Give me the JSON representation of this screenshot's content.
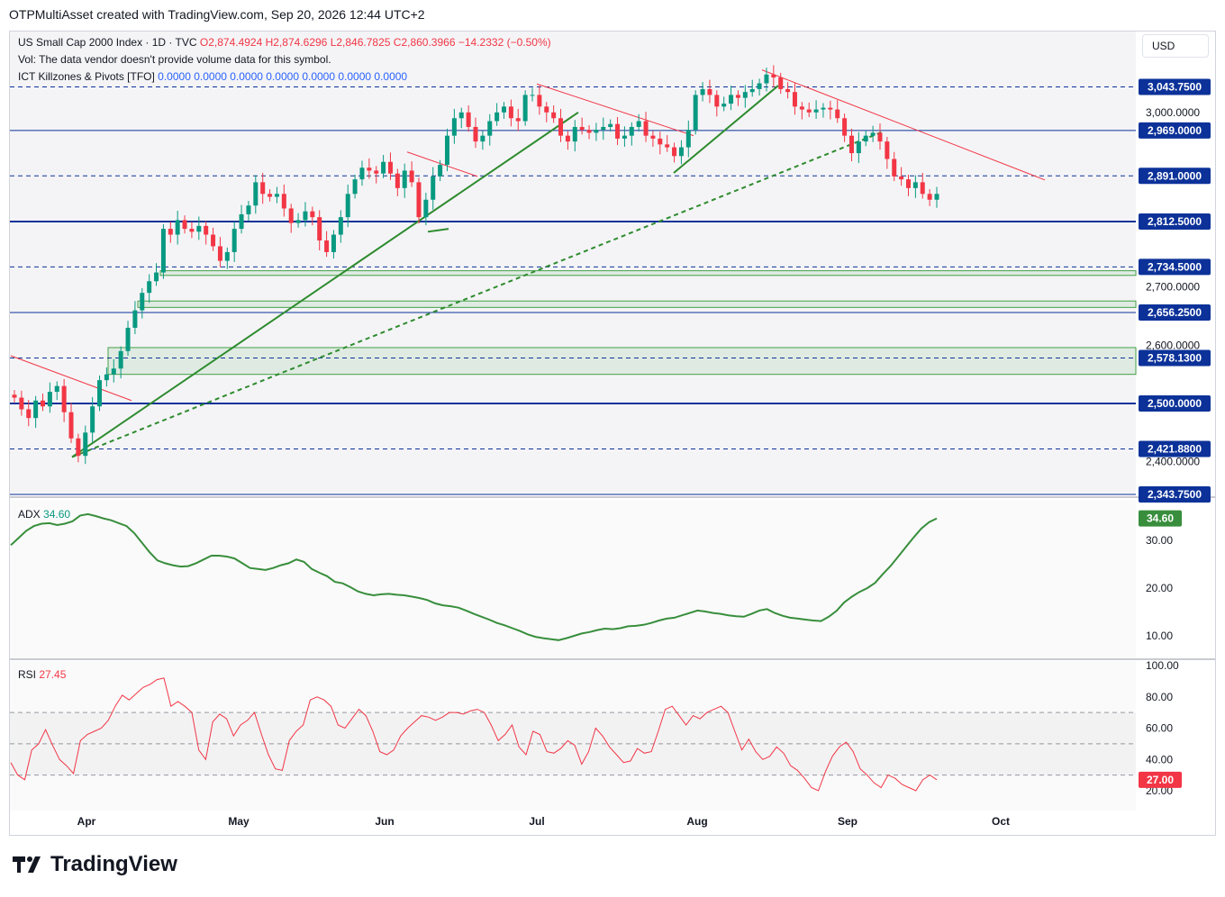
{
  "header": {
    "attribution": "OTPMultiAsset created with TradingView.com, Sep 20, 2026 12:44 UTC+2"
  },
  "legend": {
    "symbol": "US Small Cap 2000 Index · 1D · TVC",
    "o": "O2,874.4924",
    "h": "H2,874.6296",
    "l": "L2,846.7825",
    "c": "C2,860.3966",
    "change": "−14.2332 (−0.50%)",
    "vol_note": "Vol: The data vendor doesn't provide volume data for this symbol.",
    "indicator": "ICT Killzones & Pivots [TFO]",
    "indicator_values": "0.0000  0.0000  0.0000  0.0000  0.0000  0.0000  0.0000"
  },
  "currency": "USD",
  "adx_label": {
    "name": "ADX",
    "value": "34.60"
  },
  "rsi_label": {
    "name": "RSI",
    "value": "27.45"
  },
  "footer": {
    "brand": "TradingView"
  },
  "colors": {
    "up": "#089981",
    "down": "#f23645",
    "level": "#0c3299",
    "trend": "#2e8b2e",
    "rsi": "#f23645",
    "adx": "#388e3c"
  },
  "chart_data": [
    {
      "type": "candlestick",
      "title": "US Small Cap 2000 Index · 1D · TVC",
      "x_labels": [
        "Apr",
        "May",
        "Jun",
        "Jul",
        "Aug",
        "Sep",
        "Oct"
      ],
      "y_ticks": [
        2400,
        2500,
        2600,
        2700,
        2800,
        2900,
        3000
      ],
      "ylim": [
        2330,
        3085
      ],
      "price_levels": [
        {
          "label": "3,043.7500",
          "value": 3043.75,
          "style": "dashed"
        },
        {
          "label": "2,969.0000",
          "value": 2969.0,
          "style": "solid"
        },
        {
          "label": "2,891.0000",
          "value": 2891.0,
          "style": "dashed"
        },
        {
          "label": "2,812.5000",
          "value": 2812.5,
          "style": "solid-bold"
        },
        {
          "label": "2,734.5000",
          "value": 2734.5,
          "style": "dashed"
        },
        {
          "label": "2,656.2500",
          "value": 2656.25,
          "style": "solid"
        },
        {
          "label": "2,578.1300",
          "value": 2578.13,
          "style": "dashed"
        },
        {
          "label": "2,500.0000",
          "value": 2500.0,
          "style": "solid-bold"
        },
        {
          "label": "2,421.8800",
          "value": 2421.88,
          "style": "dashed"
        },
        {
          "label": "2,343.7500",
          "value": 2343.75,
          "style": "solid"
        }
      ],
      "right_axis_labels": [
        "3,000.0000",
        "2,700.0000",
        "2,600.0000",
        "2,500.0000",
        "2,400.0000"
      ],
      "candles_close": [
        2510,
        2490,
        2475,
        2505,
        2495,
        2520,
        2530,
        2485,
        2440,
        2410,
        2450,
        2495,
        2540,
        2550,
        2560,
        2590,
        2630,
        2660,
        2690,
        2710,
        2725,
        2800,
        2790,
        2815,
        2800,
        2795,
        2805,
        2790,
        2770,
        2745,
        2760,
        2800,
        2825,
        2840,
        2880,
        2860,
        2855,
        2860,
        2835,
        2810,
        2815,
        2830,
        2820,
        2780,
        2760,
        2790,
        2820,
        2860,
        2885,
        2905,
        2900,
        2895,
        2915,
        2895,
        2870,
        2900,
        2880,
        2820,
        2850,
        2890,
        2910,
        2960,
        2990,
        3000,
        2975,
        2950,
        2960,
        2985,
        3000,
        3010,
        2990,
        2985,
        3030,
        3030,
        3010,
        3000,
        2990,
        2960,
        2950,
        2975,
        2970,
        2965,
        2970,
        2975,
        2980,
        2955,
        2960,
        2975,
        2985,
        2960,
        2955,
        2945,
        2940,
        2925,
        2940,
        2970,
        3030,
        3040,
        3030,
        3010,
        3015,
        3030,
        3025,
        3035,
        3040,
        3050,
        3065,
        3060,
        3040,
        3035,
        3010,
        3005,
        3000,
        3005,
        3008,
        3005,
        2990,
        2960,
        2930,
        2950,
        2960,
        2965,
        2950,
        2920,
        2890,
        2885,
        2870,
        2880,
        2860,
        2850,
        2860
      ]
    },
    {
      "type": "line",
      "title": "ADX",
      "series": [
        {
          "name": "ADX",
          "values": [
            29,
            30.5,
            32,
            33,
            33.5,
            33.6,
            33.2,
            33.5,
            34,
            35.2,
            35.5,
            35.1,
            34.6,
            34.2,
            33.6,
            33,
            31.5,
            29.5,
            27.5,
            25.8,
            25.2,
            24.8,
            24.5,
            24.6,
            25.2,
            26,
            26.8,
            26.8,
            26.6,
            26.2,
            25.2,
            24.2,
            24,
            23.8,
            24.2,
            24.8,
            25.2,
            26,
            25.5,
            24,
            23.2,
            22.5,
            21.3,
            21,
            20.2,
            19.3,
            18.8,
            18.5,
            18.7,
            18.8,
            18.6,
            18.5,
            18.2,
            17.9,
            17.5,
            16.8,
            16.4,
            16.2,
            15.9,
            15.3,
            14.6,
            14,
            13.4,
            12.7,
            12.2,
            11.6,
            11,
            10.3,
            9.8,
            9.5,
            9.3,
            9.1,
            9.5,
            10,
            10.5,
            10.8,
            11.2,
            11.5,
            11.4,
            11.6,
            12,
            12.1,
            12.3,
            12.7,
            13.2,
            13.6,
            13.8,
            14.3,
            14.8,
            15.3,
            15.1,
            14.8,
            14.6,
            14.3,
            14.1,
            14,
            14.6,
            15.3,
            15.6,
            14.8,
            14.2,
            13.8,
            13.6,
            13.4,
            13.2,
            13.1,
            14,
            15.2,
            17,
            18.2,
            19.2,
            20,
            21.1,
            22.9,
            24.6,
            26.6,
            28.6,
            30.6,
            32.5,
            33.8,
            34.6
          ]
        }
      ],
      "y_ticks": [
        10,
        20,
        30
      ],
      "ylim": [
        5,
        39
      ]
    },
    {
      "type": "line",
      "title": "RSI",
      "series": [
        {
          "name": "RSI",
          "values": [
            38,
            30,
            27,
            46,
            50,
            59,
            49,
            40,
            36,
            31,
            52,
            56,
            58,
            60,
            65,
            74,
            81,
            78,
            82,
            86,
            88,
            91,
            92,
            74,
            77,
            74,
            70,
            46,
            40,
            64,
            69,
            66,
            55,
            62,
            65,
            70,
            56,
            43,
            34,
            33,
            52,
            58,
            62,
            78,
            80,
            78,
            74,
            62,
            60,
            66,
            72,
            68,
            58,
            45,
            43,
            46,
            55,
            60,
            64,
            68,
            67,
            65,
            67,
            70,
            70,
            69,
            71,
            72,
            70,
            62,
            52,
            56,
            62,
            48,
            43,
            58,
            56,
            45,
            44,
            47,
            52,
            49,
            37,
            45,
            60,
            55,
            48,
            43,
            38,
            39,
            47,
            44,
            45,
            58,
            72,
            74,
            68,
            62,
            68,
            66,
            70,
            72,
            74,
            70,
            58,
            46,
            53,
            45,
            40,
            42,
            48,
            44,
            36,
            33,
            28,
            22,
            20,
            32,
            42,
            48,
            51,
            45,
            34,
            30,
            25,
            22,
            30,
            28,
            24,
            22,
            20,
            27,
            30,
            27
          ]
        }
      ],
      "y_ticks": [
        20,
        40,
        60,
        80,
        100
      ],
      "ylim": [
        10,
        105
      ],
      "bands": [
        70,
        50,
        30
      ]
    }
  ]
}
